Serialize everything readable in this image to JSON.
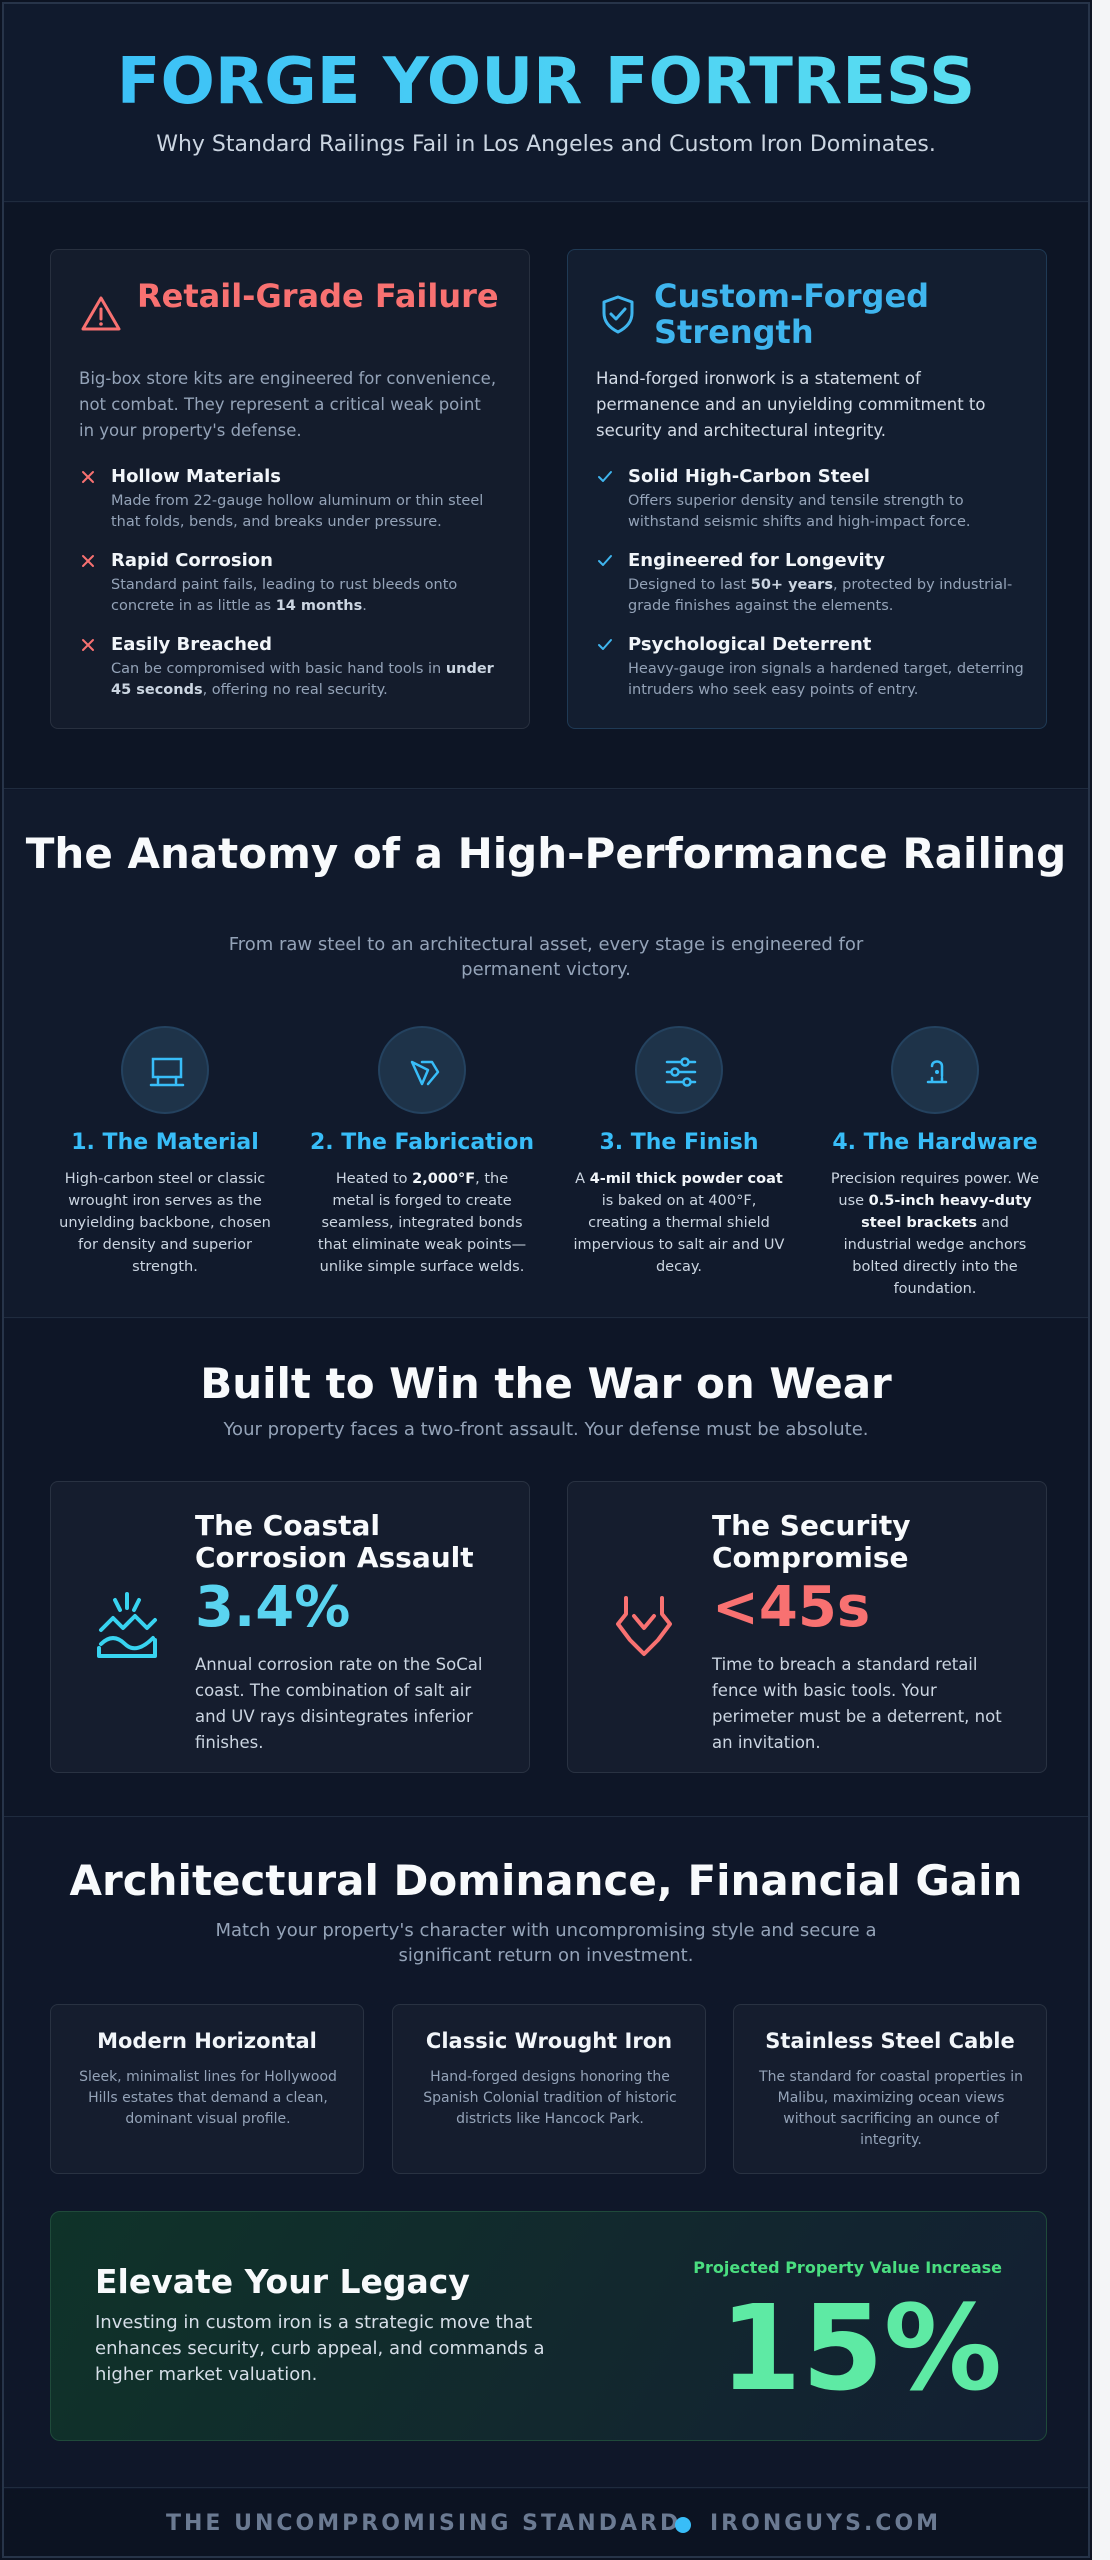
{
  "hero": {
    "title": "FORGE YOUR FORTRESS",
    "subtitle": "Why Standard Railings Fail in Los Angeles and Custom Iron Dominates."
  },
  "comparison": {
    "retail": {
      "icon": "warning-triangle-icon",
      "title": "Retail-Grade Failure",
      "intro": "Big-box store kits are engineered for convenience, not combat. They represent a critical weak point in your property's defense.",
      "items": [
        {
          "title": "Hollow Materials",
          "desc": "Made from 22-gauge hollow aluminum or thin steel that folds, bends, and breaks under pressure."
        },
        {
          "title": "Rapid Corrosion",
          "desc_pre": "Standard paint fails, leading to rust bleeds onto concrete in as little as ",
          "desc_bold": "14 months",
          "desc_post": "."
        },
        {
          "title": "Easily Breached",
          "desc_pre": "Can be compromised with basic hand tools in ",
          "desc_bold": "under 45 seconds",
          "desc_post": ", offering no real security."
        }
      ]
    },
    "custom": {
      "icon": "shield-check-icon",
      "title": "Custom-Forged Strength",
      "intro": "Hand-forged ironwork is a statement of permanence and an unyielding commitment to security and architectural integrity.",
      "items": [
        {
          "title": "Solid High-Carbon Steel",
          "desc": "Offers superior density and tensile strength to withstand seismic shifts and high-impact force."
        },
        {
          "title": "Engineered for Longevity",
          "desc_pre": "Designed to last ",
          "desc_bold": "50+ years",
          "desc_post": ", protected by industrial-grade finishes against the elements."
        },
        {
          "title": "Psychological Deterrent",
          "desc": "Heavy-gauge iron signals a hardened target, deterring intruders who seek easy points of entry."
        }
      ]
    }
  },
  "anatomy": {
    "title": "The Anatomy of a High-Performance Railing",
    "subtitle": "From raw steel to an architectural asset, every stage is engineered for permanent victory.",
    "steps": [
      {
        "icon": "anvil-icon",
        "title": "1. The Material",
        "desc": "High-carbon steel or classic wrought iron serves as the unyielding backbone, chosen for density and superior strength."
      },
      {
        "icon": "fire-tongs-icon",
        "title": "2. The Fabrication",
        "desc_pre": "Heated to ",
        "desc_bold": "2,000°F",
        "desc_post": ", the metal is forged to create seamless, integrated bonds that eliminate weak points—unlike simple surface welds."
      },
      {
        "icon": "sliders-icon",
        "title": "3. The Finish",
        "desc_pre": "A ",
        "desc_bold": "4-mil thick powder coat",
        "desc_post": " is baked on at 400°F, creating a thermal shield impervious to salt air and UV decay."
      },
      {
        "icon": "anchor-bolt-icon",
        "title": "4. The Hardware",
        "desc_pre": "Precision requires power. We use ",
        "desc_bold": "0.5-inch heavy-duty steel brackets",
        "desc_post": " and industrial wedge anchors bolted directly into the foundation."
      }
    ]
  },
  "wear": {
    "title": "Built to Win the War on Wear",
    "subtitle": "Your property faces a two-front assault. Your defense must be absolute.",
    "stats": [
      {
        "icon": "corrosion-waves-icon",
        "title": "The Coastal Corrosion Assault",
        "value": "3.4%",
        "color": "#5ad4f0",
        "desc": "Annual corrosion rate on the SoCal coast. The combination of salt air and UV rays disintegrates inferior finishes."
      },
      {
        "icon": "security-breach-icon",
        "title": "The Security Compromise",
        "value": "<45s",
        "color": "#f87171",
        "desc": "Time to breach a standard retail fence with basic tools. Your perimeter must be a deterrent, not an invitation."
      }
    ]
  },
  "architecture": {
    "title": "Architectural Dominance, Financial Gain",
    "subtitle": "Match your property's character with uncompromising style and secure a significant return on investment.",
    "styles": [
      {
        "title": "Modern Horizontal",
        "desc": "Sleek, minimalist lines for Hollywood Hills estates that demand a clean, dominant visual profile."
      },
      {
        "title": "Classic Wrought Iron",
        "desc": "Hand-forged designs honoring the Spanish Colonial tradition of historic districts like Hancock Park."
      },
      {
        "title": "Stainless Steel Cable",
        "desc": "The standard for coastal properties in Malibu, maximizing ocean views without sacrificing an ounce of integrity."
      }
    ],
    "legacy": {
      "title": "Elevate Your Legacy",
      "desc": "Investing in custom iron is a strategic move that enhances security, curb appeal, and commands a higher market valuation.",
      "label": "Projected Property Value Increase",
      "value": "15%"
    }
  },
  "footer": {
    "left": "THE UNCOMPROMISING STANDARD",
    "right": "IRONGUYS.COM"
  }
}
